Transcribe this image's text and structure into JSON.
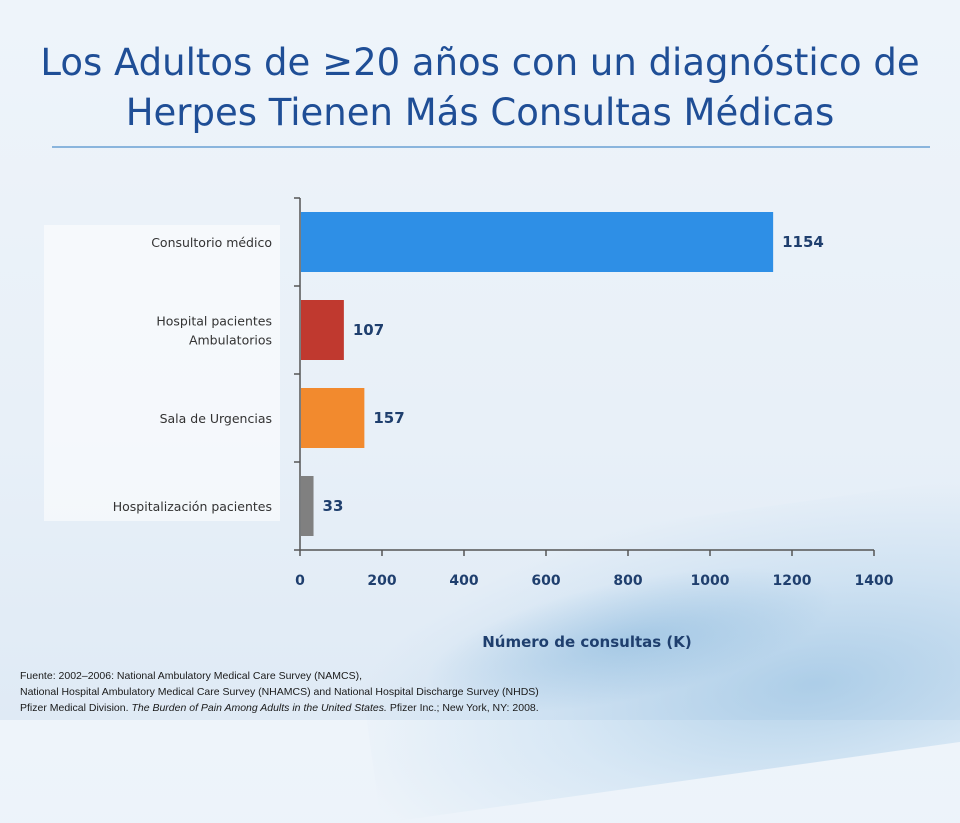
{
  "slide": {
    "title_line1": "Los Adultos de ≥20 años con un diagnóstico de",
    "title_line2": "Herpes Tienen Más Consultas Médicas"
  },
  "chart_data": {
    "type": "bar",
    "orientation": "horizontal",
    "categories": [
      "Consultorio médico",
      "Hospital pacientes Ambulatorios",
      "Sala de Urgencias",
      "Hospitalización pacientes"
    ],
    "category_lines": [
      [
        "Consultorio médico"
      ],
      [
        "Hospital pacientes",
        "Ambulatorios"
      ],
      [
        "Sala de Urgencias"
      ],
      [
        "Hospitalización pacientes"
      ]
    ],
    "values": [
      1154,
      107,
      157,
      33
    ],
    "data_labels": [
      "1154",
      "107",
      "157",
      "33"
    ],
    "colors": [
      "#2e8fe6",
      "#c0392f",
      "#f28a2e",
      "#808080"
    ],
    "xlabel": "Número de consultas (K)",
    "xlim": [
      0,
      1400
    ],
    "xticks": [
      0,
      200,
      400,
      600,
      800,
      1000,
      1200,
      1400
    ],
    "grid": false,
    "legend": "none"
  },
  "source": {
    "line1": "Fuente:  2002–2006: National Ambulatory Medical Care Survey (NAMCS),",
    "line2": "National Hospital Ambulatory Medical Care Survey (NHAMCS) and National Hospital Discharge Survey (NHDS)",
    "line3_prefix": "Pfizer Medical Division. ",
    "line3_italic": "The Burden of Pain Among Adults in the United States.",
    "line3_suffix": " Pfizer Inc.; New York, NY: 2008."
  }
}
